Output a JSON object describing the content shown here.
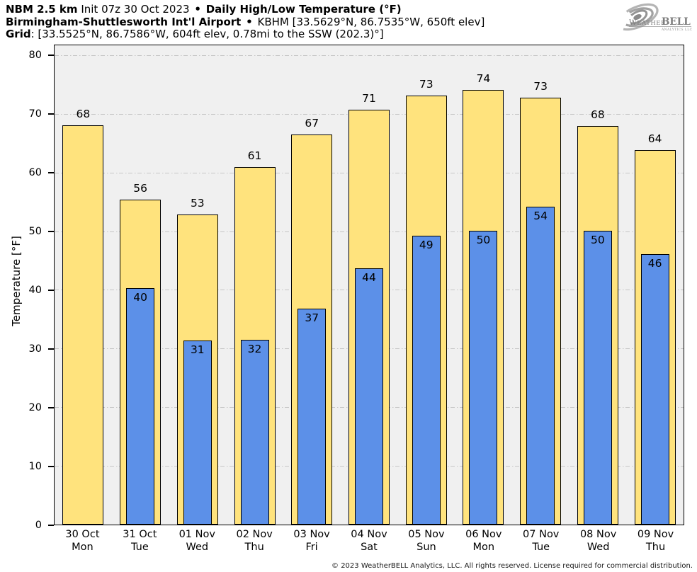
{
  "header": {
    "model": "NBM 2.5 km",
    "init": "Init 07z 30 Oct 2023",
    "sep": "•",
    "product": "Daily High/Low Temperature (°F)",
    "station_name": "Birmingham-Shuttlesworth Int'l Airport",
    "station_info": "KBHM [33.5629°N, 86.7535°W, 650ft elev]",
    "grid_label": "Grid",
    "grid_info": ": [33.5525°N, 86.7586°W, 604ft elev, 0.78mi to the SSW (202.3)°]"
  },
  "logo": {
    "brand_weather": "Weather",
    "brand_bell": "BELL",
    "subtext": "Analytics LLC",
    "icon": "hurricane-swirl-icon",
    "color": "#8f8f8f"
  },
  "footer": {
    "copyright": "© 2023 WeatherBELL Analytics, LLC. All rights reserved. License required for commercial distribution."
  },
  "chart_data": {
    "type": "bar",
    "title": "NBM 2.5 km Init 07z 30 Oct 2023 • Daily High/Low Temperature (°F) • Birmingham-Shuttlesworth Int'l Airport (KBHM)",
    "xlabel": "",
    "ylabel": "Temperature [°F]",
    "ylim": [
      0,
      81.8
    ],
    "yticks": [
      0,
      10,
      20,
      30,
      40,
      50,
      60,
      70,
      80
    ],
    "grid": "horizontal dash-dot gridlines on",
    "legend": "none",
    "categories": [
      {
        "date": "30 Oct",
        "day": "Mon"
      },
      {
        "date": "31 Oct",
        "day": "Tue"
      },
      {
        "date": "01 Nov",
        "day": "Wed"
      },
      {
        "date": "02 Nov",
        "day": "Thu"
      },
      {
        "date": "03 Nov",
        "day": "Fri"
      },
      {
        "date": "04 Nov",
        "day": "Sat"
      },
      {
        "date": "05 Nov",
        "day": "Sun"
      },
      {
        "date": "06 Nov",
        "day": "Mon"
      },
      {
        "date": "07 Nov",
        "day": "Tue"
      },
      {
        "date": "08 Nov",
        "day": "Wed"
      },
      {
        "date": "09 Nov",
        "day": "Thu"
      }
    ],
    "series": [
      {
        "name": "Daily High",
        "color": "#ffe37d",
        "values": [
          68.2,
          55.5,
          52.9,
          61.0,
          66.6,
          70.8,
          73.2,
          74.2,
          72.9,
          68.0,
          63.9
        ],
        "labels": [
          "68",
          "56",
          "53",
          "61",
          "67",
          "71",
          "73",
          "74",
          "73",
          "68",
          "64"
        ]
      },
      {
        "name": "Daily Low",
        "color": "#5c90e8",
        "values": [
          null,
          40.4,
          31.4,
          31.5,
          36.8,
          43.8,
          49.3,
          50.2,
          54.3,
          50.1,
          46.2
        ],
        "labels": [
          "",
          "40",
          "31",
          "32",
          "37",
          "44",
          "49",
          "50",
          "54",
          "50",
          "46"
        ]
      }
    ],
    "colors": {
      "plot_background": "#f0f0f0",
      "page_background": "#ffffff",
      "bar_border": "#000000",
      "gridline": "#c6c6c6",
      "text": "#000000"
    }
  }
}
